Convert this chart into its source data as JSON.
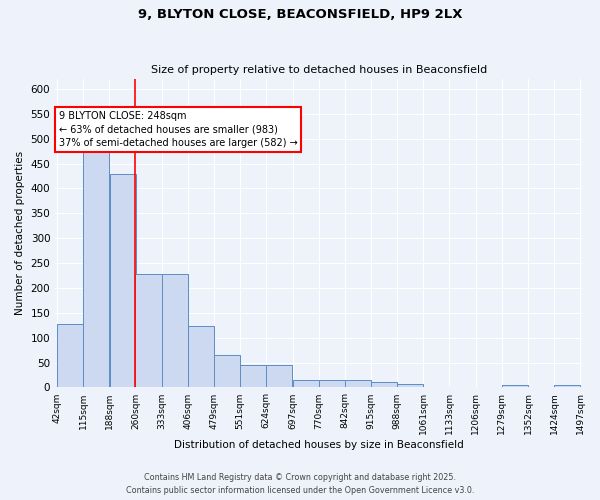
{
  "title1": "9, BLYTON CLOSE, BEACONSFIELD, HP9 2LX",
  "title2": "Size of property relative to detached houses in Beaconsfield",
  "xlabel": "Distribution of detached houses by size in Beaconsfield",
  "ylabel": "Number of detached properties",
  "bar_left_edges": [
    42,
    115,
    188,
    260,
    333,
    406,
    479,
    551,
    624,
    697,
    770,
    842,
    915,
    988,
    1061,
    1133,
    1206,
    1279,
    1352,
    1424
  ],
  "bar_widths": [
    73,
    73,
    73,
    73,
    73,
    73,
    73,
    73,
    73,
    73,
    73,
    73,
    73,
    73,
    73,
    73,
    73,
    73,
    73,
    73
  ],
  "bar_heights": [
    128,
    490,
    430,
    228,
    228,
    124,
    65,
    46,
    46,
    14,
    14,
    14,
    10,
    7,
    1,
    1,
    1,
    5,
    1,
    5
  ],
  "tick_labels": [
    "42sqm",
    "115sqm",
    "188sqm",
    "260sqm",
    "333sqm",
    "406sqm",
    "479sqm",
    "551sqm",
    "624sqm",
    "697sqm",
    "770sqm",
    "842sqm",
    "915sqm",
    "988sqm",
    "1061sqm",
    "1133sqm",
    "1206sqm",
    "1279sqm",
    "1352sqm",
    "1424sqm",
    "1497sqm"
  ],
  "bar_color": "#ccd9f0",
  "bar_edge_color": "#5b8ec4",
  "vline_x": 260,
  "vline_color": "red",
  "annotation_text": "9 BLYTON CLOSE: 248sqm\n← 63% of detached houses are smaller (983)\n37% of semi-detached houses are larger (582) →",
  "ylim": [
    0,
    620
  ],
  "yticks": [
    0,
    50,
    100,
    150,
    200,
    250,
    300,
    350,
    400,
    450,
    500,
    550,
    600
  ],
  "bg_color": "#edf2fb",
  "plot_bg_color": "#edf2fb",
  "footer_line1": "Contains HM Land Registry data © Crown copyright and database right 2025.",
  "footer_line2": "Contains public sector information licensed under the Open Government Licence v3.0.",
  "grid_color": "#ffffff"
}
